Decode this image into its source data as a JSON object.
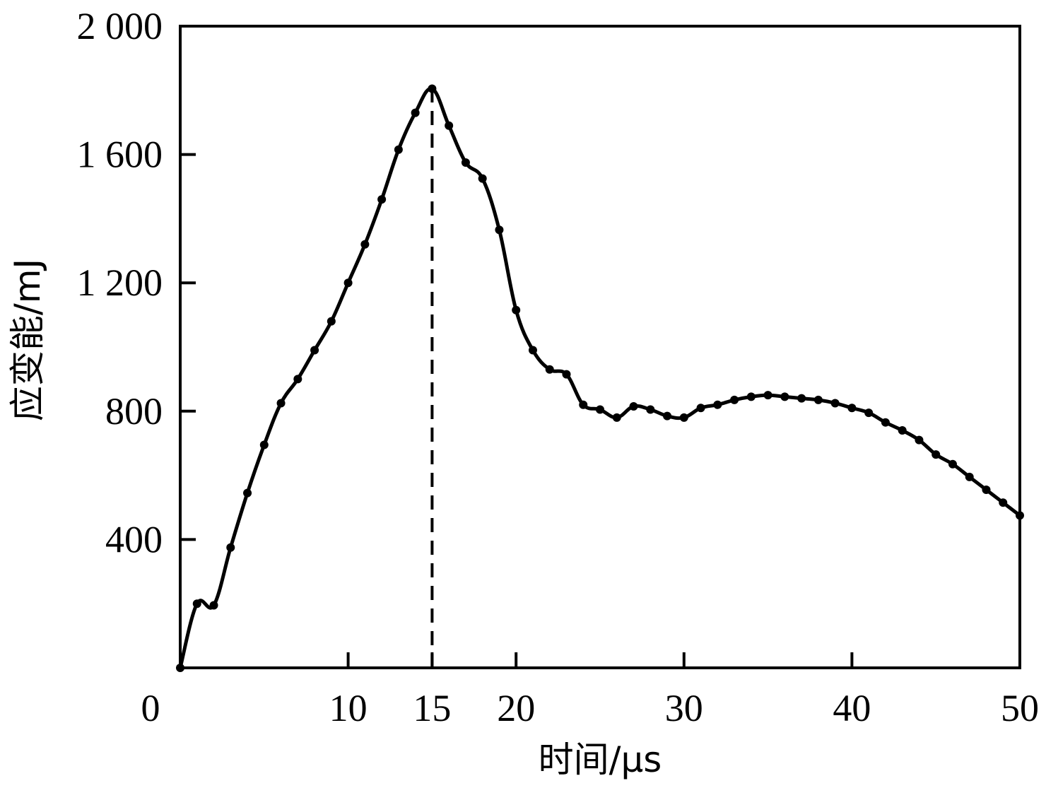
{
  "chart_data": {
    "type": "line",
    "title": "",
    "xlabel": "时间/μs",
    "ylabel": "应变能/mJ",
    "xlim": [
      0,
      50
    ],
    "ylim": [
      0,
      2000
    ],
    "x_ticks": [
      0,
      10,
      15,
      20,
      30,
      40,
      50
    ],
    "x_tick_labels": [
      "0",
      "10",
      "15",
      "20",
      "30",
      "40",
      "50"
    ],
    "y_ticks": [
      400,
      800,
      1200,
      1600,
      2000
    ],
    "y_tick_labels": [
      "400",
      "800",
      "1 200",
      "1 600",
      "2 000"
    ],
    "grid": false,
    "reference_line": {
      "x": 15,
      "style": "dashed"
    },
    "series": [
      {
        "color": "#000000",
        "marker": "circle",
        "x": [
          0,
          1,
          2,
          3,
          4,
          5,
          6,
          7,
          8,
          9,
          10,
          11,
          12,
          13,
          14,
          15,
          16,
          17,
          18,
          19,
          20,
          21,
          22,
          23,
          24,
          25,
          26,
          27,
          28,
          29,
          30,
          31,
          32,
          33,
          34,
          35,
          36,
          37,
          38,
          39,
          40,
          41,
          42,
          43,
          44,
          45,
          46,
          47,
          48,
          49,
          50
        ],
        "y": [
          0,
          200,
          195,
          375,
          545,
          695,
          825,
          900,
          990,
          1080,
          1200,
          1320,
          1460,
          1615,
          1730,
          1805,
          1690,
          1575,
          1525,
          1365,
          1115,
          990,
          930,
          915,
          820,
          805,
          780,
          815,
          805,
          785,
          780,
          810,
          820,
          835,
          845,
          850,
          845,
          840,
          835,
          825,
          810,
          795,
          765,
          740,
          710,
          665,
          635,
          595,
          555,
          515,
          475
        ]
      }
    ]
  }
}
